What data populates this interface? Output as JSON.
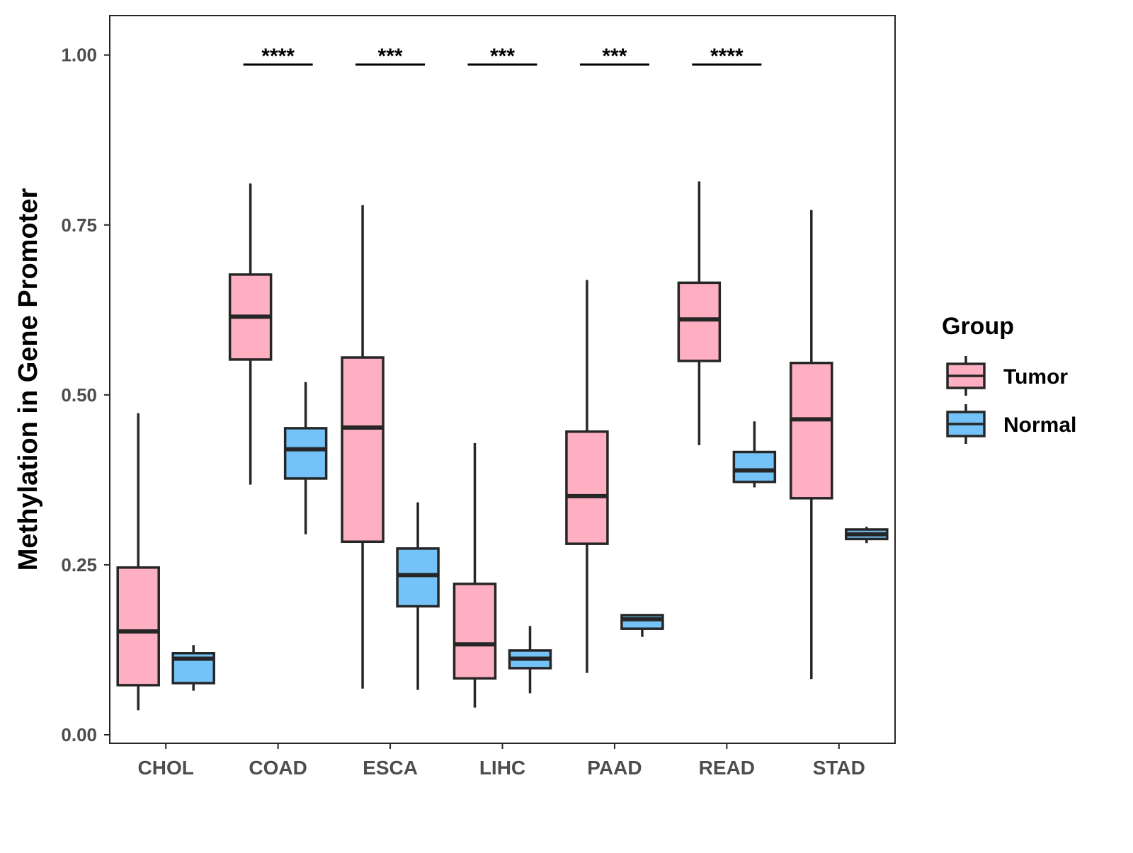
{
  "chart_data": {
    "type": "boxplot",
    "title": "",
    "xlabel": "",
    "ylabel": "Methylation in Gene Promoter",
    "ylim": [
      -0.0125,
      1.058
    ],
    "yticks": [
      0,
      0.25,
      0.5,
      0.75,
      1.0
    ],
    "ytick_labels": [
      "0.00",
      "0.25",
      "0.50",
      "0.75",
      "1.00"
    ],
    "grid": false,
    "categories": [
      "CHOL",
      "COAD",
      "ESCA",
      "LIHC",
      "PAAD",
      "READ",
      "STAD"
    ],
    "legend": {
      "title": "Group",
      "placement": "right",
      "entries": [
        "Tumor",
        "Normal"
      ]
    },
    "colors": {
      "Tumor": "#FFAFC2",
      "Normal": "#74C2F7",
      "stroke": "#262626"
    },
    "series": [
      {
        "name": "Tumor",
        "boxes": [
          {
            "whisker_low": 0.036,
            "q1": 0.073,
            "median": 0.152,
            "q3": 0.246,
            "whisker_high": 0.473
          },
          {
            "whisker_low": 0.368,
            "q1": 0.552,
            "median": 0.615,
            "q3": 0.677,
            "whisker_high": 0.811
          },
          {
            "whisker_low": 0.068,
            "q1": 0.284,
            "median": 0.452,
            "q3": 0.555,
            "whisker_high": 0.779
          },
          {
            "whisker_low": 0.04,
            "q1": 0.083,
            "median": 0.133,
            "q3": 0.222,
            "whisker_high": 0.429
          },
          {
            "whisker_low": 0.091,
            "q1": 0.281,
            "median": 0.351,
            "q3": 0.446,
            "whisker_high": 0.669
          },
          {
            "whisker_low": 0.426,
            "q1": 0.55,
            "median": 0.611,
            "q3": 0.665,
            "whisker_high": 0.814
          },
          {
            "whisker_low": 0.082,
            "q1": 0.348,
            "median": 0.464,
            "q3": 0.547,
            "whisker_high": 0.772
          }
        ]
      },
      {
        "name": "Normal",
        "boxes": [
          {
            "whisker_low": 0.065,
            "q1": 0.076,
            "median": 0.112,
            "q3": 0.12,
            "whisker_high": 0.132
          },
          {
            "whisker_low": 0.295,
            "q1": 0.377,
            "median": 0.42,
            "q3": 0.451,
            "whisker_high": 0.519
          },
          {
            "whisker_low": 0.066,
            "q1": 0.189,
            "median": 0.235,
            "q3": 0.274,
            "whisker_high": 0.342
          },
          {
            "whisker_low": 0.061,
            "q1": 0.098,
            "median": 0.112,
            "q3": 0.124,
            "whisker_high": 0.16
          },
          {
            "whisker_low": 0.144,
            "q1": 0.156,
            "median": 0.17,
            "q3": 0.176,
            "whisker_high": 0.176
          },
          {
            "whisker_low": 0.364,
            "q1": 0.372,
            "median": 0.389,
            "q3": 0.416,
            "whisker_high": 0.461
          },
          {
            "whisker_low": 0.282,
            "q1": 0.288,
            "median": 0.295,
            "q3": 0.302,
            "whisker_high": 0.306
          }
        ]
      }
    ],
    "annotations": [
      {
        "category": "COAD",
        "label": "****",
        "y": 0.986
      },
      {
        "category": "ESCA",
        "label": "***",
        "y": 0.986
      },
      {
        "category": "LIHC",
        "label": "***",
        "y": 0.986
      },
      {
        "category": "PAAD",
        "label": "***",
        "y": 0.986
      },
      {
        "category": "READ",
        "label": "****",
        "y": 0.986
      }
    ]
  }
}
